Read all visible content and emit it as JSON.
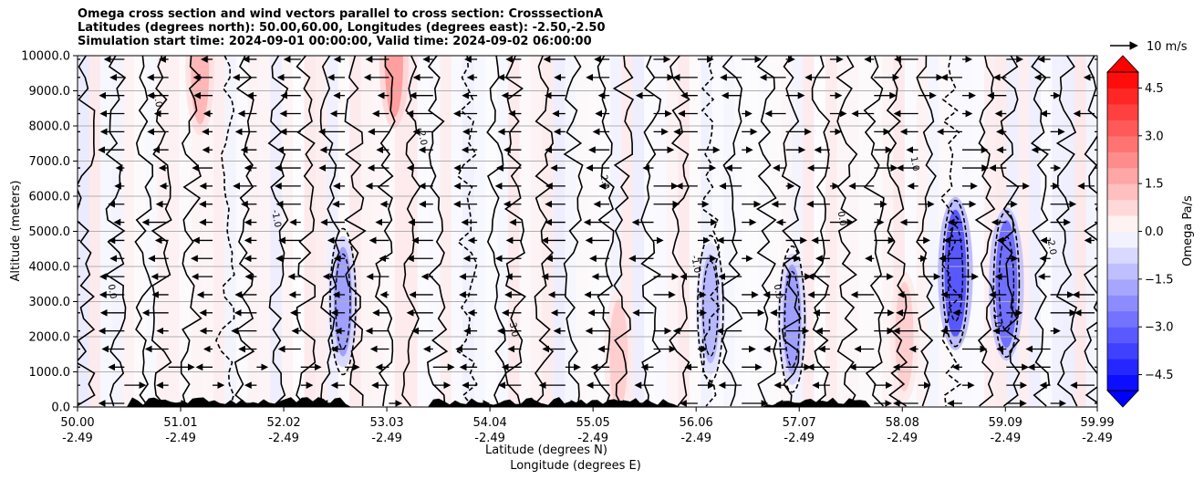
{
  "chart_data": {
    "type": "filled-contour",
    "title_lines": [
      "Omega cross section and wind vectors parallel to cross section: CrosssectionA",
      "Latitudes (degrees north): 50.00,60.00, Longitudes (degrees east): -2.50,-2.50",
      "Simulation start time: 2024-09-01 00:00:00, Valid time: 2024-09-02 06:00:00"
    ],
    "ylabel": "Altitude (meters)",
    "xlabel_line1": "Latitude (degrees N)",
    "xlabel_line2": "Longitude (degrees E)",
    "ylim": [
      0,
      10000
    ],
    "y_ticks": [
      "0.0",
      "1000.0",
      "2000.0",
      "3000.0",
      "4000.0",
      "5000.0",
      "6000.0",
      "7000.0",
      "8000.0",
      "9000.0",
      "10000.0"
    ],
    "x_ticks": [
      {
        "lat": "50.00",
        "lon": "-2.49"
      },
      {
        "lat": "51.01",
        "lon": "-2.49"
      },
      {
        "lat": "52.02",
        "lon": "-2.49"
      },
      {
        "lat": "53.03",
        "lon": "-2.49"
      },
      {
        "lat": "54.04",
        "lon": "-2.49"
      },
      {
        "lat": "55.05",
        "lon": "-2.49"
      },
      {
        "lat": "56.06",
        "lon": "-2.49"
      },
      {
        "lat": "57.07",
        "lon": "-2.49"
      },
      {
        "lat": "58.08",
        "lon": "-2.49"
      },
      {
        "lat": "59.09",
        "lon": "-2.49"
      },
      {
        "lat": "59.99",
        "lon": "-2.49"
      }
    ],
    "colorbar": {
      "label": "Omega Pa/s",
      "range": [
        -5,
        5
      ],
      "ticks": [
        "4.5",
        "3.0",
        "1.5",
        "0.0",
        "−1.5",
        "−3.0",
        "−4.5"
      ],
      "tick_values": [
        4.5,
        3.0,
        1.5,
        0.0,
        -1.5,
        -3.0,
        -4.5
      ],
      "low_color": "#0000ff",
      "high_color": "#ff0000",
      "mid_color": "#ffffff"
    },
    "quiver_key": "10 m/s",
    "contour_labels": [
      "0.0",
      "1.0",
      "-1.0",
      "-2.0",
      "-3.0",
      "2.0",
      "-1.0",
      "0.0"
    ],
    "omega_features": [
      {
        "lat": 52.6,
        "alt": 3000,
        "value": -2.0
      },
      {
        "lat": 53.1,
        "alt": 9800,
        "value": 2.0
      },
      {
        "lat": 51.2,
        "alt": 9600,
        "value": 1.5
      },
      {
        "lat": 56.2,
        "alt": 2800,
        "value": -1.5
      },
      {
        "lat": 57.0,
        "alt": 2500,
        "value": -2.0
      },
      {
        "lat": 58.6,
        "alt": 3800,
        "value": -3.5
      },
      {
        "lat": 59.1,
        "alt": 3500,
        "value": -3.0
      },
      {
        "lat": 58.1,
        "alt": 2000,
        "value": 1.0
      },
      {
        "lat": 55.3,
        "alt": 1500,
        "value": 1.0
      }
    ]
  }
}
